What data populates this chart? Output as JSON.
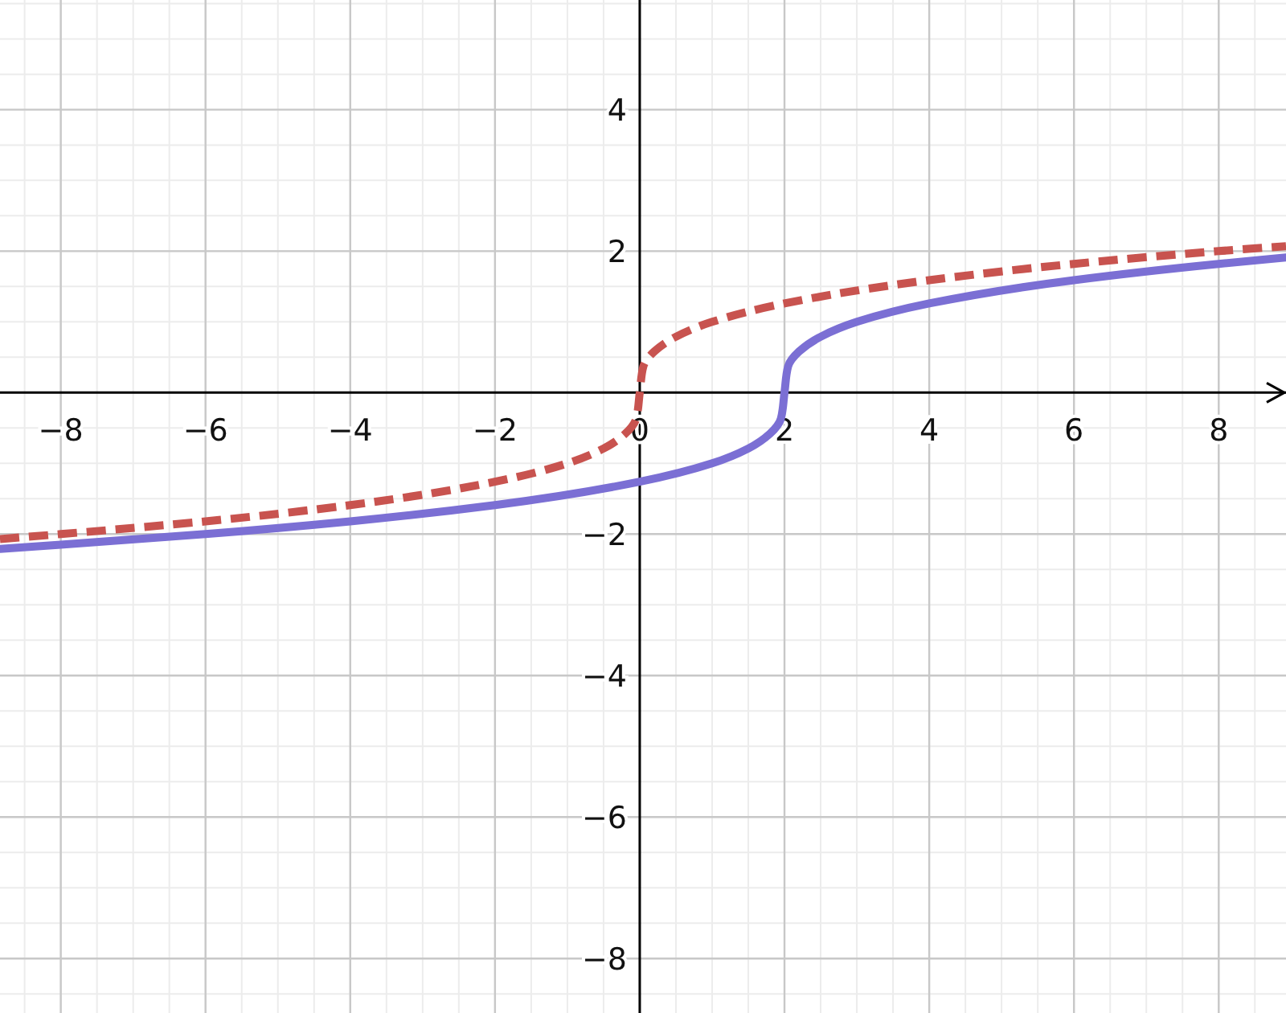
{
  "chart_data": {
    "type": "line",
    "xlim": [
      -8.84,
      8.93
    ],
    "ylim": [
      -8.77,
      5.55
    ],
    "xticks": [
      -8,
      -6,
      -4,
      -2,
      0,
      2,
      4,
      6,
      8
    ],
    "yticks": [
      -8,
      -6,
      -4,
      -2,
      2,
      4
    ],
    "grid": true,
    "marker": "none",
    "series": [
      {
        "color": "#c8534f",
        "line_style": "dashed",
        "x": [
          -8.84,
          -8,
          -6,
          -4,
          -2,
          -1,
          -0.5,
          -0.2,
          -0.05,
          0,
          0.05,
          0.2,
          0.5,
          1,
          2,
          4,
          6,
          8,
          8.93
        ],
        "values": [
          -2.07,
          -2,
          -1.82,
          -1.59,
          -1.26,
          -1,
          -0.79,
          -0.58,
          -0.37,
          0,
          0.37,
          0.58,
          0.79,
          1,
          1.26,
          1.59,
          1.82,
          2,
          2.07
        ]
      },
      {
        "color": "#7b6fd4",
        "line_style": "solid",
        "x": [
          -8.84,
          -8,
          -6,
          -4,
          -2,
          0,
          1,
          1.5,
          1.8,
          1.95,
          2,
          2.05,
          2.2,
          2.5,
          3,
          4,
          6,
          8,
          8.93
        ],
        "values": [
          -2.21,
          -2.15,
          -2,
          -1.82,
          -1.59,
          -1.26,
          -1,
          -0.79,
          -0.58,
          -0.37,
          0,
          0.37,
          0.58,
          0.79,
          1,
          1.26,
          1.59,
          1.82,
          1.91
        ]
      }
    ]
  }
}
